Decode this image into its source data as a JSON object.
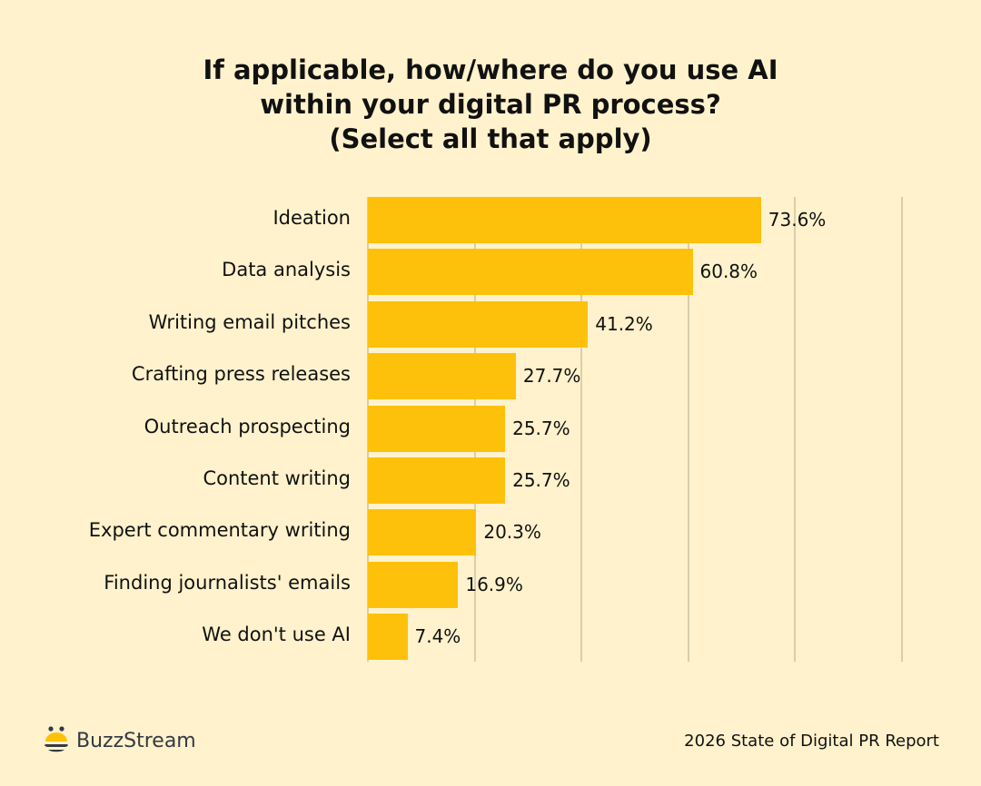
{
  "title": {
    "line1": "If applicable, how/where do you use AI",
    "line2": "within your digital PR process?",
    "line3": "(Select all that apply)"
  },
  "footer": {
    "brand": "BuzzStream",
    "source": "2026 State of Digital PR Report"
  },
  "colors": {
    "bar": "#fec10b",
    "background": "#fff2cc",
    "grid": "#d9cfae"
  },
  "chart_data": {
    "type": "bar",
    "orientation": "horizontal",
    "title": "If applicable, how/where do you use AI within your digital PR process? (Select all that apply)",
    "categories": [
      "Ideation",
      "Data analysis",
      "Writing email pitches",
      "Crafting press releases",
      "Outreach prospecting",
      "Content writing",
      "Expert commentary writing",
      "Finding journalists' emails",
      "We don't use AI"
    ],
    "values": [
      73.6,
      60.8,
      41.2,
      27.7,
      25.7,
      25.7,
      20.3,
      16.9,
      7.4
    ],
    "value_labels": [
      "73.6%",
      "60.8%",
      "41.2%",
      "27.7%",
      "25.7%",
      "25.7%",
      "20.3%",
      "16.9%",
      "7.4%"
    ],
    "xlabel": "",
    "ylabel": "",
    "xlim": [
      0,
      100
    ],
    "grid": true,
    "gridlines_at": [
      0,
      20,
      40,
      60,
      80,
      100
    ],
    "tick_labels_visible": false,
    "legend": null
  }
}
